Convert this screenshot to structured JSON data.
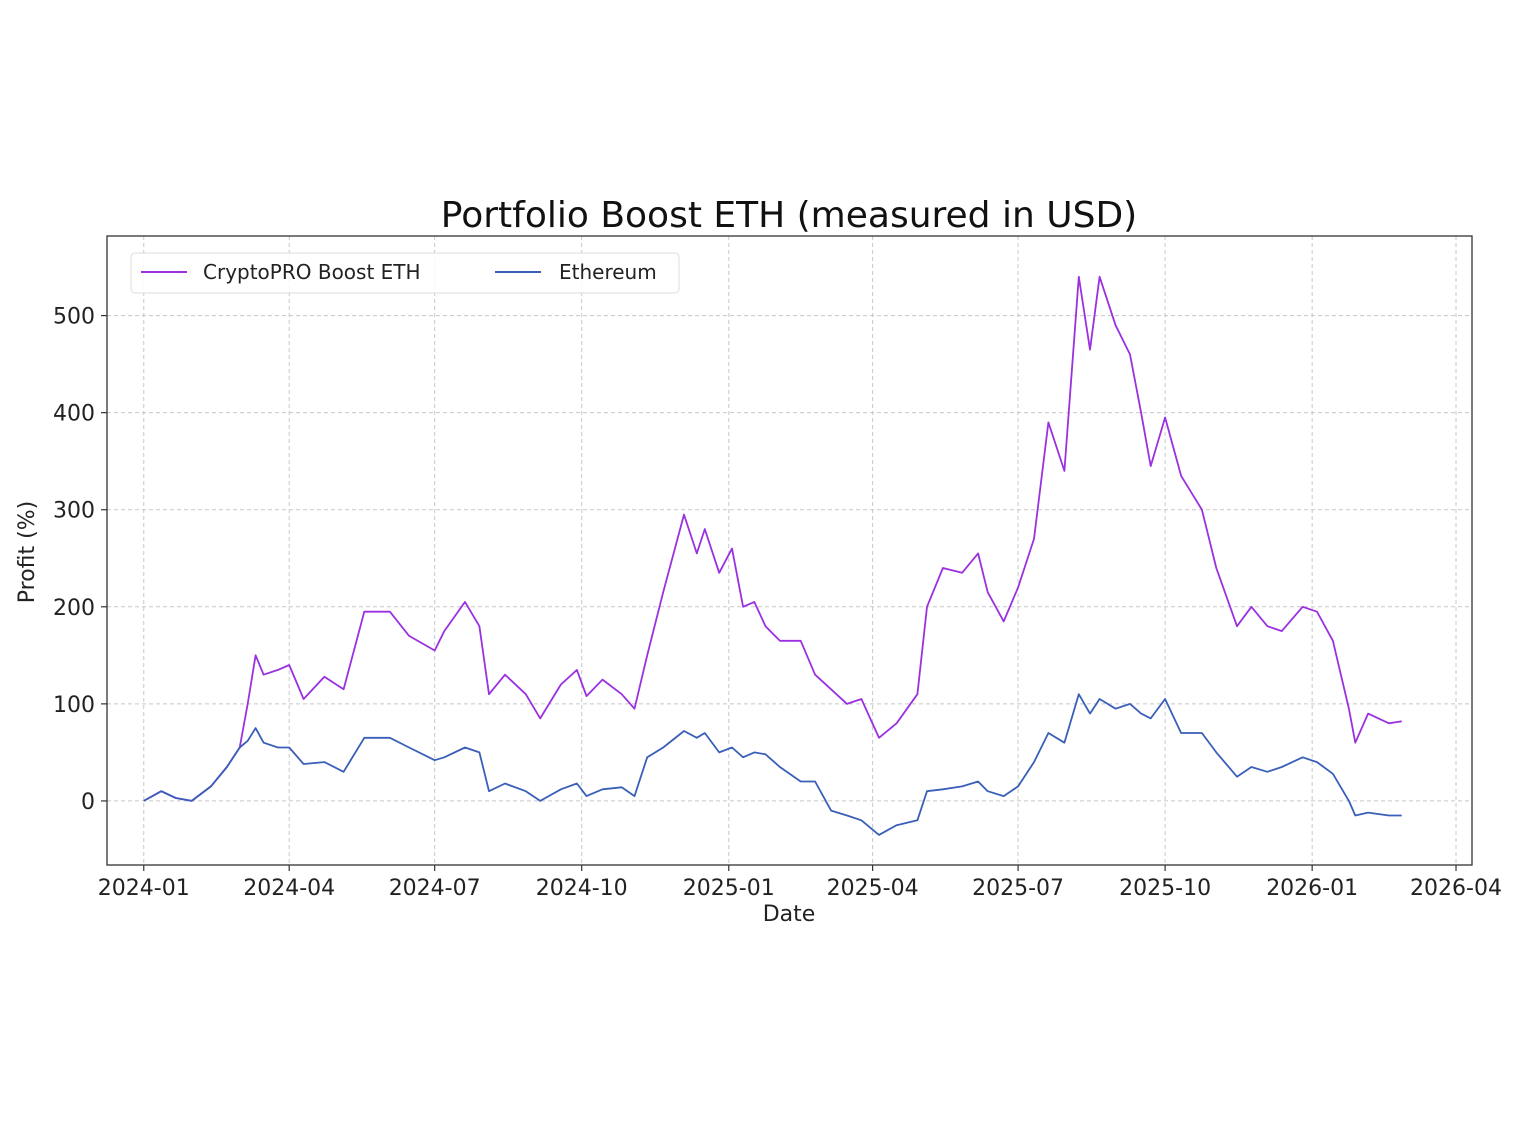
{
  "chart_data": {
    "type": "line",
    "title": "Portfolio Boost ETH (measured in USD)",
    "xlabel": "Date",
    "ylabel": "Profit (%)",
    "xlim": [
      "2023-12-09",
      "2026-04-11"
    ],
    "ylim": [
      -66,
      582
    ],
    "grid": true,
    "legend_position": "top-left",
    "x_ticks": [
      "2024-01",
      "2024-04",
      "2024-07",
      "2024-10",
      "2025-01",
      "2025-04",
      "2025-07",
      "2025-10",
      "2026-01",
      "2026-04"
    ],
    "y_ticks": [
      0,
      100,
      200,
      300,
      400,
      500
    ],
    "x": [
      "2024-01-01",
      "2024-01-12",
      "2024-01-21",
      "2024-01-31",
      "2024-02-12",
      "2024-02-22",
      "2024-03-01",
      "2024-03-06",
      "2024-03-11",
      "2024-03-16",
      "2024-03-25",
      "2024-04-01",
      "2024-04-10",
      "2024-04-23",
      "2024-05-05",
      "2024-05-18",
      "2024-06-03",
      "2024-06-15",
      "2024-07-01",
      "2024-07-07",
      "2024-07-20",
      "2024-07-29",
      "2024-08-04",
      "2024-08-14",
      "2024-08-27",
      "2024-09-05",
      "2024-09-18",
      "2024-09-28",
      "2024-10-04",
      "2024-10-14",
      "2024-10-26",
      "2024-11-03",
      "2024-11-11",
      "2024-11-21",
      "2024-12-04",
      "2024-12-12",
      "2024-12-17",
      "2024-12-26",
      "2025-01-03",
      "2025-01-10",
      "2025-01-17",
      "2025-01-24",
      "2025-02-02",
      "2025-02-15",
      "2025-02-24",
      "2025-03-06",
      "2025-03-16",
      "2025-03-25",
      "2025-04-05",
      "2025-04-16",
      "2025-04-29",
      "2025-05-05",
      "2025-05-15",
      "2025-05-27",
      "2025-06-06",
      "2025-06-12",
      "2025-06-22",
      "2025-07-01",
      "2025-07-11",
      "2025-07-20",
      "2025-07-30",
      "2025-08-08",
      "2025-08-15",
      "2025-08-21",
      "2025-08-31",
      "2025-09-09",
      "2025-09-16",
      "2025-09-22",
      "2025-10-01",
      "2025-10-11",
      "2025-10-24",
      "2025-11-02",
      "2025-11-15",
      "2025-11-24",
      "2025-12-04",
      "2025-12-13",
      "2025-12-26",
      "2026-01-04",
      "2026-01-14",
      "2026-01-24",
      "2026-01-28",
      "2026-02-05",
      "2026-02-18",
      "2026-02-26"
    ],
    "series": [
      {
        "name": "CryptoPRO Boost ETH",
        "color": "#9b30e0",
        "values": [
          0,
          10,
          3,
          0,
          15,
          35,
          55,
          100,
          150,
          130,
          135,
          140,
          105,
          128,
          115,
          195,
          195,
          170,
          155,
          175,
          205,
          180,
          110,
          130,
          110,
          85,
          120,
          135,
          108,
          125,
          110,
          95,
          150,
          215,
          295,
          255,
          280,
          235,
          260,
          200,
          205,
          180,
          165,
          165,
          130,
          115,
          100,
          105,
          65,
          80,
          110,
          200,
          240,
          235,
          255,
          215,
          185,
          220,
          270,
          390,
          340,
          540,
          465,
          540,
          490,
          460,
          400,
          345,
          395,
          335,
          300,
          240,
          180,
          200,
          180,
          175,
          200,
          195,
          165,
          95,
          60,
          90,
          80,
          82
        ]
      },
      {
        "name": "Ethereum",
        "color": "#3a5fb8",
        "values": [
          0,
          10,
          3,
          0,
          15,
          35,
          55,
          62,
          75,
          60,
          55,
          55,
          38,
          40,
          30,
          65,
          65,
          55,
          42,
          45,
          55,
          50,
          10,
          18,
          10,
          0,
          12,
          18,
          5,
          12,
          14,
          5,
          45,
          55,
          72,
          65,
          70,
          50,
          55,
          45,
          50,
          48,
          35,
          20,
          20,
          -10,
          -15,
          -20,
          -35,
          -25,
          -20,
          10,
          12,
          15,
          20,
          10,
          5,
          15,
          40,
          70,
          60,
          110,
          90,
          105,
          95,
          100,
          90,
          85,
          105,
          70,
          70,
          50,
          25,
          35,
          30,
          35,
          45,
          40,
          28,
          0,
          -15,
          -12,
          -15,
          -15
        ]
      }
    ]
  }
}
